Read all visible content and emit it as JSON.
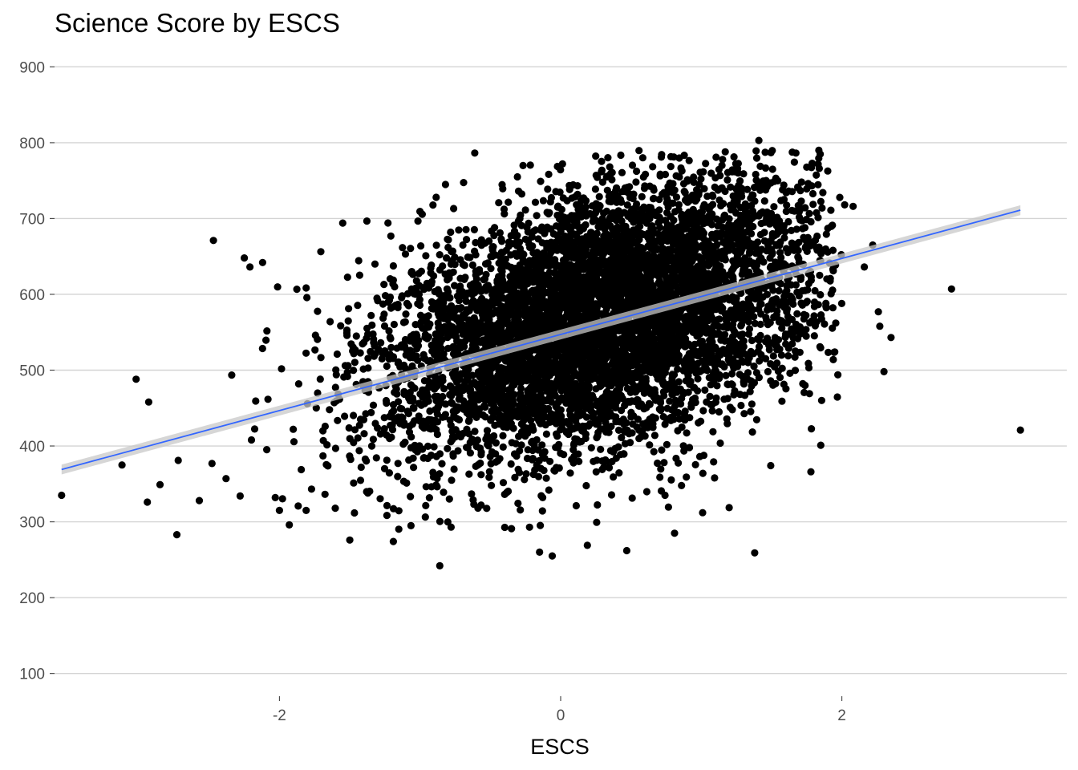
{
  "chart_data": {
    "type": "scatter",
    "title": "Science Score by ESCS",
    "xlabel": "ESCS",
    "ylabel": "",
    "xlim": [
      -3.6,
      3.6
    ],
    "ylim": [
      70,
      930
    ],
    "x_ticks": [
      -2,
      0,
      2
    ],
    "x_tick_labels": [
      "-2",
      "0",
      "2"
    ],
    "y_ticks": [
      100,
      200,
      300,
      400,
      500,
      600,
      700,
      800,
      900
    ],
    "y_tick_labels": [
      "100",
      "200",
      "300",
      "400",
      "500",
      "600",
      "700",
      "800",
      "900"
    ],
    "grid": "horizontal-major",
    "legend": "none",
    "point_color": "#000000",
    "fit_line": {
      "type": "linear",
      "color": "#3366ff",
      "band_color": "#c8c8c8",
      "x": [
        -3.55,
        3.27
      ],
      "y": [
        369,
        711
      ],
      "se": 5
    },
    "cloud": {
      "n": 6500,
      "x_mean": 0.3,
      "x_sd": 0.8,
      "y_intercept": 555,
      "y_slope": 48,
      "y_resid_sd": 85,
      "seed": 20240
    },
    "outliers": [
      {
        "x": -3.55,
        "y": 335
      },
      {
        "x": -3.12,
        "y": 375
      },
      {
        "x": -3.02,
        "y": 488
      },
      {
        "x": -2.93,
        "y": 458
      },
      {
        "x": -2.94,
        "y": 326
      },
      {
        "x": -2.85,
        "y": 349
      },
      {
        "x": -2.73,
        "y": 283
      },
      {
        "x": -2.72,
        "y": 381
      },
      {
        "x": -2.57,
        "y": 328
      },
      {
        "x": -2.47,
        "y": 671
      },
      {
        "x": -2.38,
        "y": 357
      },
      {
        "x": -2.28,
        "y": 334
      },
      {
        "x": -2.25,
        "y": 648
      },
      {
        "x": -2.21,
        "y": 636
      },
      {
        "x": -2.12,
        "y": 642
      },
      {
        "x": -2.0,
        "y": 315
      },
      {
        "x": -1.93,
        "y": 296
      },
      {
        "x": -1.81,
        "y": 315
      },
      {
        "x": -1.55,
        "y": 694
      },
      {
        "x": -1.5,
        "y": 276
      },
      {
        "x": -1.19,
        "y": 274
      },
      {
        "x": -0.86,
        "y": 242
      },
      {
        "x": -0.35,
        "y": 291
      },
      {
        "x": -0.15,
        "y": 260
      },
      {
        "x": -0.06,
        "y": 255
      },
      {
        "x": 0.19,
        "y": 269
      },
      {
        "x": 0.47,
        "y": 262
      },
      {
        "x": 0.81,
        "y": 285
      },
      {
        "x": 1.01,
        "y": 312
      },
      {
        "x": 1.38,
        "y": 259
      },
      {
        "x": 1.41,
        "y": 803
      },
      {
        "x": 1.78,
        "y": 366
      },
      {
        "x": 1.85,
        "y": 401
      },
      {
        "x": 2.02,
        "y": 718
      },
      {
        "x": 2.08,
        "y": 716
      },
      {
        "x": 2.16,
        "y": 636
      },
      {
        "x": 2.22,
        "y": 665
      },
      {
        "x": 2.26,
        "y": 577
      },
      {
        "x": 2.27,
        "y": 558
      },
      {
        "x": 2.3,
        "y": 498
      },
      {
        "x": 2.35,
        "y": 543
      },
      {
        "x": 2.78,
        "y": 607
      },
      {
        "x": 3.27,
        "y": 421
      }
    ]
  }
}
